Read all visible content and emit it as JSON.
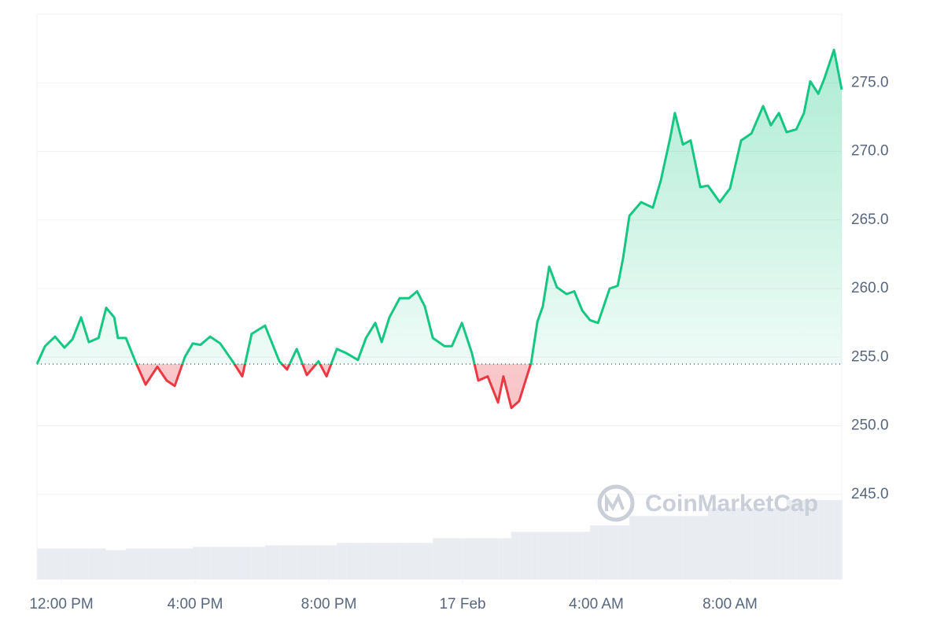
{
  "chart_data": {
    "type": "line",
    "watermark": "CoinMarketCap",
    "x": [
      -0.73,
      -0.49,
      -0.19,
      0.09,
      0.33,
      0.59,
      0.82,
      1.11,
      1.34,
      1.58,
      1.69,
      1.93,
      2.21,
      2.52,
      2.87,
      3.15,
      3.39,
      3.69,
      3.93,
      4.16,
      4.45,
      4.75,
      5.15,
      5.41,
      5.69,
      6.09,
      6.52,
      6.75,
      7.04,
      7.34,
      7.69,
      7.93,
      8.24,
      8.52,
      8.87,
      9.11,
      9.39,
      9.58,
      9.81,
      10.12,
      10.4,
      10.64,
      10.87,
      11.11,
      11.46,
      11.68,
      11.98,
      12.28,
      12.47,
      12.75,
      13.06,
      13.22,
      13.46,
      13.69,
      14.05,
      14.24,
      14.4,
      14.59,
      14.82,
      15.11,
      15.34,
      15.58,
      15.81,
      16.05,
      16.4,
      16.64,
      16.8,
      16.99,
      17.34,
      17.69,
      17.93,
      18.21,
      18.35,
      18.59,
      18.82,
      19.11,
      19.34,
      19.69,
      20.0,
      20.33,
      20.64,
      20.99,
      21.22,
      21.46,
      21.69,
      21.98,
      22.21,
      22.4,
      22.64,
      22.82,
      23.11,
      23.34
    ],
    "series": [
      {
        "name": "Price",
        "color": "#16c784",
        "negative_color": "#ea3943",
        "values": [
          254.5,
          255.8,
          256.5,
          255.7,
          256.3,
          257.9,
          256.1,
          256.4,
          258.6,
          257.9,
          256.4,
          256.4,
          254.7,
          253.0,
          254.3,
          253.3,
          252.9,
          255.0,
          256.0,
          255.9,
          256.5,
          256.0,
          254.6,
          253.6,
          256.7,
          257.3,
          254.7,
          254.1,
          255.6,
          253.7,
          254.7,
          253.6,
          255.6,
          255.3,
          254.8,
          256.4,
          257.5,
          256.1,
          257.9,
          259.3,
          259.3,
          259.8,
          258.7,
          256.4,
          255.8,
          255.8,
          257.5,
          255.3,
          253.3,
          253.6,
          251.7,
          253.6,
          251.3,
          251.8,
          254.6,
          257.6,
          258.7,
          261.6,
          260.1,
          259.6,
          259.8,
          258.4,
          257.7,
          257.5,
          260.0,
          260.2,
          262.2,
          265.3,
          266.3,
          265.9,
          267.9,
          271.0,
          272.8,
          270.5,
          270.8,
          267.4,
          267.5,
          266.3,
          267.3,
          270.8,
          271.3,
          273.3,
          271.9,
          272.8,
          271.4,
          271.6,
          272.8,
          275.1,
          274.2,
          275.3,
          277.4,
          274.5
        ]
      },
      {
        "name": "Volume",
        "color": "#e9ecf1",
        "values": [
          39,
          39,
          39,
          39,
          39,
          39,
          39,
          39,
          37,
          37,
          37,
          39,
          39,
          39,
          39,
          39,
          39,
          39,
          41,
          41,
          41,
          41,
          41,
          41,
          41,
          43,
          43,
          43,
          43,
          43,
          43,
          43,
          46,
          46,
          46,
          46,
          46,
          46,
          46,
          46,
          46,
          46,
          46,
          52,
          52,
          52,
          52,
          52,
          52,
          52,
          52,
          52,
          60,
          60,
          60,
          60,
          60,
          60,
          60,
          60,
          60,
          60,
          68,
          68,
          68,
          68,
          68,
          80,
          80,
          80,
          80,
          80,
          80,
          80,
          80,
          80,
          90,
          90,
          90,
          90,
          90,
          90,
          90,
          90,
          100,
          100,
          100,
          100,
          100,
          100,
          100,
          100
        ]
      }
    ],
    "baseline": 254.5,
    "xlim": [
      -0.73,
      23.34
    ],
    "xticks": [
      {
        "value": 0,
        "label": "12:00 PM"
      },
      {
        "value": 4,
        "label": "4:00 PM"
      },
      {
        "value": 8,
        "label": "8:00 PM"
      },
      {
        "value": 12,
        "label": "17 Feb"
      },
      {
        "value": 16,
        "label": "4:00 AM"
      },
      {
        "value": 20,
        "label": "8:00 AM"
      }
    ],
    "ylim": [
      238.8,
      280
    ],
    "yticks": [
      {
        "value": 245,
        "label": "245.0"
      },
      {
        "value": 250,
        "label": "250.0"
      },
      {
        "value": 255,
        "label": "255.0"
      },
      {
        "value": 260,
        "label": "260.0"
      },
      {
        "value": 265,
        "label": "265.0"
      },
      {
        "value": 270,
        "label": "270.0"
      },
      {
        "value": 275,
        "label": "275.0"
      }
    ],
    "grid": true
  }
}
